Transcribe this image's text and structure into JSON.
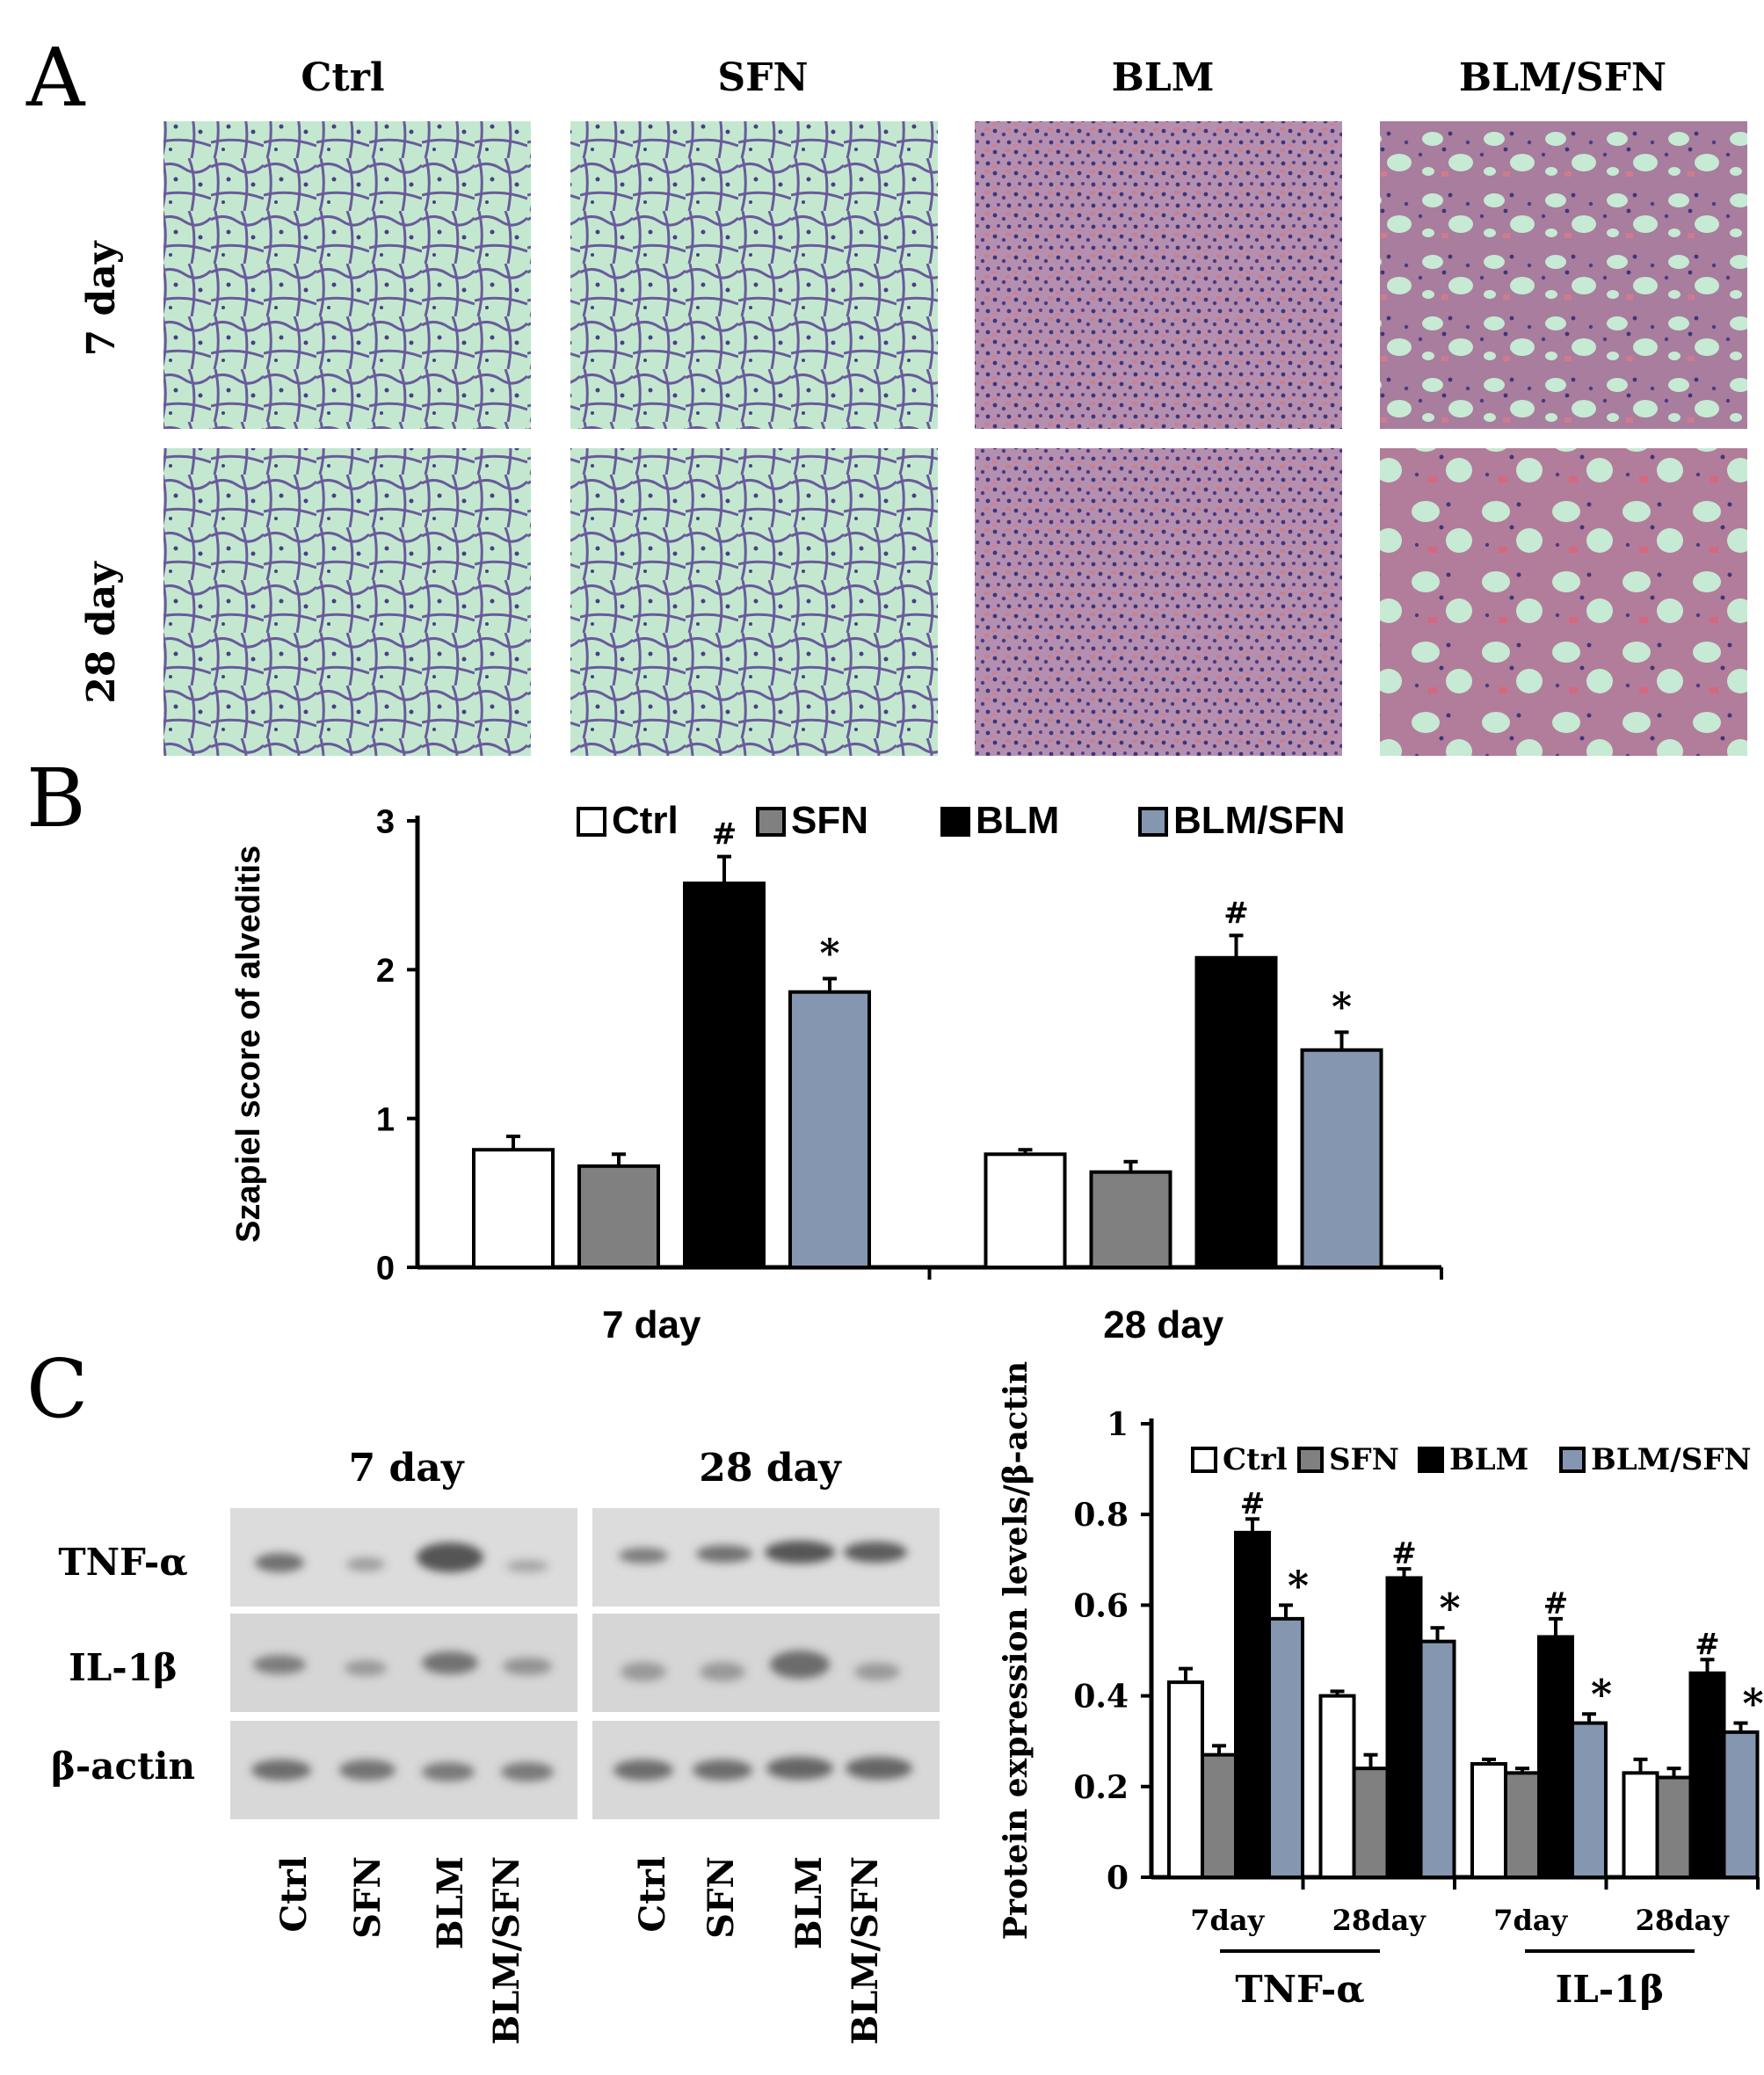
{
  "panel_letters": {
    "a": "A",
    "b": "B",
    "c": "C"
  },
  "panel_a": {
    "columns": [
      "Ctrl",
      "SFN",
      "BLM",
      "BLM/SFN"
    ],
    "rows": [
      "7 day",
      "28 day"
    ]
  },
  "panel_c_blot": {
    "groups": [
      "7 day",
      "28 day"
    ],
    "proteins": [
      "TNF-α",
      "IL-1β",
      "β-actin"
    ],
    "lanes": [
      "Ctrl",
      "SFN",
      "BLM",
      "BLM/SFN"
    ],
    "band_colors": {
      "tnf": "#555555",
      "il": "#666666",
      "actin": "#5a5a5a"
    }
  },
  "colors": {
    "ctrl": "#ffffff",
    "sfn": "#808080",
    "blm": "#000000",
    "blm_sfn": "#8496b0"
  },
  "chart_data": [
    {
      "type": "bar",
      "panel": "B",
      "ylabel": "Szapiel score of alveditis",
      "xlabel": "",
      "categories": [
        "7 day",
        "28 day"
      ],
      "ylim": [
        0,
        3
      ],
      "yticks": [
        "0",
        "1",
        "2",
        "3"
      ],
      "legend_position": "top",
      "series": [
        {
          "name": "Ctrl",
          "values": [
            0.79,
            0.76
          ],
          "errors": [
            0.09,
            0.03
          ],
          "marks": [
            "",
            ""
          ]
        },
        {
          "name": "SFN",
          "values": [
            0.68,
            0.64
          ],
          "errors": [
            0.08,
            0.07
          ],
          "marks": [
            "",
            ""
          ]
        },
        {
          "name": "BLM",
          "values": [
            2.58,
            2.08
          ],
          "errors": [
            0.18,
            0.15
          ],
          "marks": [
            "#",
            "#"
          ]
        },
        {
          "name": "BLM/SFN",
          "values": [
            1.85,
            1.46
          ],
          "errors": [
            0.09,
            0.12
          ],
          "marks": [
            "*",
            "*"
          ]
        }
      ]
    },
    {
      "type": "bar",
      "panel": "C",
      "ylabel": "Protein expression levels/β-actin",
      "xlabel": "",
      "categories": [
        "7day",
        "28day",
        "7day",
        "28day"
      ],
      "groups": [
        "TNF-α",
        "IL-1β"
      ],
      "ylim": [
        0,
        1
      ],
      "yticks": [
        "0",
        "0.2",
        "0.4",
        "0.6",
        "0.8",
        "1"
      ],
      "legend_position": "top",
      "series": [
        {
          "name": "Ctrl",
          "values": [
            0.43,
            0.4,
            0.25,
            0.23
          ],
          "errors": [
            0.03,
            0.01,
            0.01,
            0.03
          ],
          "marks": [
            "",
            "",
            "",
            ""
          ]
        },
        {
          "name": "SFN",
          "values": [
            0.27,
            0.24,
            0.23,
            0.22
          ],
          "errors": [
            0.02,
            0.03,
            0.01,
            0.02
          ],
          "marks": [
            "",
            "",
            "",
            ""
          ]
        },
        {
          "name": "BLM",
          "values": [
            0.76,
            0.66,
            0.53,
            0.45
          ],
          "errors": [
            0.03,
            0.02,
            0.04,
            0.03
          ],
          "marks": [
            "#",
            "#",
            "#",
            "#"
          ]
        },
        {
          "name": "BLM/SFN",
          "values": [
            0.57,
            0.52,
            0.34,
            0.32
          ],
          "errors": [
            0.03,
            0.03,
            0.02,
            0.02
          ],
          "marks": [
            "*",
            "*",
            "*",
            "*"
          ]
        }
      ]
    }
  ]
}
